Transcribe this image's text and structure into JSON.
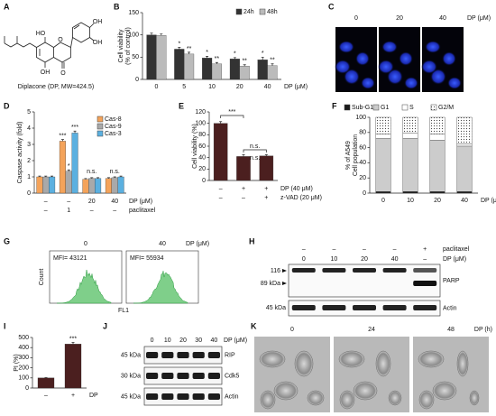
{
  "panels": {
    "A": {
      "letter": "A",
      "caption": "Diplacone (DP, MW=424.5)",
      "atoms": [
        "OH",
        "OH",
        "HO",
        "O",
        "OH",
        "O"
      ]
    },
    "B": {
      "letter": "B",
      "type": "bar",
      "y_label": [
        "Cell viability",
        "(% of control)"
      ],
      "x_label": "DP (μM)",
      "categories": [
        "0",
        "5",
        "10",
        "20",
        "40"
      ],
      "series": [
        {
          "name": "24h",
          "color": "#333333",
          "values": [
            100,
            68,
            48,
            46,
            44
          ],
          "errors": [
            4,
            4,
            4,
            3,
            6
          ],
          "stars": [
            null,
            "*",
            "*",
            "*",
            "*"
          ]
        },
        {
          "name": "48h",
          "color": "#bbbbbb",
          "values": [
            99,
            57,
            35,
            30,
            31
          ],
          "errors": [
            3,
            4,
            3,
            3,
            4
          ],
          "stars": [
            null,
            "**",
            "**",
            "**",
            "**"
          ]
        }
      ],
      "ylim": [
        0,
        150
      ],
      "yticks": [
        0,
        50,
        100,
        150
      ]
    },
    "C": {
      "letter": "C",
      "labels": [
        "0",
        "20",
        "40"
      ],
      "unit": "DP (μM)"
    },
    "D": {
      "letter": "D",
      "type": "bar",
      "y_label": [
        "Caspase activity (fold)"
      ],
      "categories": [
        null,
        null,
        null,
        null
      ],
      "rows": [
        {
          "label": "DP (μM)",
          "cells": [
            "–",
            "–",
            "20",
            "40"
          ]
        },
        {
          "label": "paclitaxel",
          "cells": [
            "–",
            "1",
            "–",
            "–"
          ]
        }
      ],
      "series": [
        {
          "name": "Cas-8",
          "color": "#f4a35a",
          "values": [
            1.0,
            3.2,
            0.85,
            0.9
          ],
          "errors": [
            0.05,
            0.1,
            0.05,
            0.05
          ],
          "stars": [
            null,
            "***",
            null,
            null
          ]
        },
        {
          "name": "Cas-9",
          "color": "#a9a9a9",
          "values": [
            1.0,
            1.35,
            0.9,
            0.95
          ],
          "errors": [
            0.05,
            0.08,
            0.05,
            0.05
          ],
          "stars": [
            null,
            "*",
            null,
            null
          ]
        },
        {
          "name": "Cas-3",
          "color": "#5bb0e0",
          "values": [
            1.0,
            3.7,
            0.9,
            1.0
          ],
          "errors": [
            0.05,
            0.12,
            0.05,
            0.05
          ],
          "stars": [
            null,
            "***",
            null,
            null
          ]
        }
      ],
      "group_labels": [
        null,
        null,
        "n.s.",
        "n.s."
      ],
      "ylim": [
        0,
        5
      ],
      "yticks": [
        0,
        1,
        2,
        3,
        4,
        5
      ]
    },
    "E": {
      "letter": "E",
      "type": "bar",
      "y_label": [
        "Cell viability (%)"
      ],
      "categories": [
        null,
        null,
        null
      ],
      "rows": [
        {
          "label": "DP (40 μM)",
          "cells": [
            "–",
            "+",
            "+"
          ]
        },
        {
          "label": "z-VAD (20 μM)",
          "cells": [
            "–",
            "–",
            "+"
          ]
        }
      ],
      "series": [
        {
          "color": "#4b1f1f",
          "values": [
            100,
            42,
            43
          ],
          "errors": [
            3,
            3,
            2
          ]
        }
      ],
      "brackets": [
        "***",
        "n.s.",
        "n.s."
      ],
      "ylim": [
        0,
        120
      ],
      "yticks": [
        0,
        20,
        40,
        60,
        80,
        100,
        120
      ]
    },
    "F": {
      "letter": "F",
      "type": "stacked_bar",
      "y_label": [
        "% of A549",
        "Cell population"
      ],
      "x_label": "DP (μM)",
      "categories": [
        "0",
        "10",
        "20",
        "40"
      ],
      "series": [
        {
          "name": "Sub-G1",
          "color": "#1a1a1a",
          "values": [
            2,
            2,
            2,
            2
          ]
        },
        {
          "name": "G1",
          "color": "#cccccc",
          "values": [
            70,
            70,
            68,
            60
          ]
        },
        {
          "name": "S",
          "color": "#ffffff",
          "values": [
            6,
            7,
            8,
            3
          ]
        },
        {
          "name": "G2/M",
          "color": "#ffffff",
          "pattern": "dots",
          "values": [
            22,
            21,
            22,
            35
          ]
        }
      ],
      "ylim": [
        0,
        100
      ],
      "yticks": [
        0,
        20,
        40,
        60,
        80,
        100
      ]
    },
    "G": {
      "letter": "G",
      "labels": [
        "0",
        "40"
      ],
      "unit": "DP (μM)",
      "y_label": "Count",
      "x_label": "FL1",
      "mfi": [
        "MFI= 43121",
        "MFI= 55934"
      ]
    },
    "H": {
      "letter": "H",
      "header_rows": [
        {
          "label": "paclitaxel",
          "cells": [
            "–",
            "–",
            "–",
            "–",
            "+"
          ]
        },
        {
          "label": "DP (μM)",
          "cells": [
            "0",
            "10",
            "20",
            "40",
            "–"
          ]
        }
      ],
      "blots": [
        {
          "markers": [
            "116",
            "89 kDa"
          ],
          "name": "PARP"
        },
        {
          "markers": [
            "45 kDa"
          ],
          "name": "Actin"
        }
      ]
    },
    "I": {
      "letter": "I",
      "type": "bar",
      "y_label": [
        "PI (%)"
      ],
      "x_label": "DP",
      "categories": [
        "–",
        "+"
      ],
      "series": [
        {
          "color": "#4b1f1f",
          "values": [
            100,
            435
          ],
          "errors": [
            3,
            15
          ],
          "stars": [
            null,
            "***"
          ]
        }
      ],
      "ylim": [
        0,
        500
      ],
      "yticks": [
        0,
        100,
        200,
        300,
        400,
        500
      ]
    },
    "J": {
      "letter": "J",
      "lanes": [
        "0",
        "10",
        "20",
        "30",
        "40"
      ],
      "lane_label": "DP (μM)",
      "blots": [
        {
          "markers": [
            "45 kDa"
          ],
          "name": "RIP"
        },
        {
          "markers": [
            "30 kDa"
          ],
          "name": "Cdk5"
        },
        {
          "markers": [
            "45 kDa"
          ],
          "name": "Actin"
        }
      ]
    },
    "K": {
      "letter": "K",
      "labels": [
        "0",
        "24",
        "48"
      ],
      "unit": "DP (h)"
    }
  }
}
